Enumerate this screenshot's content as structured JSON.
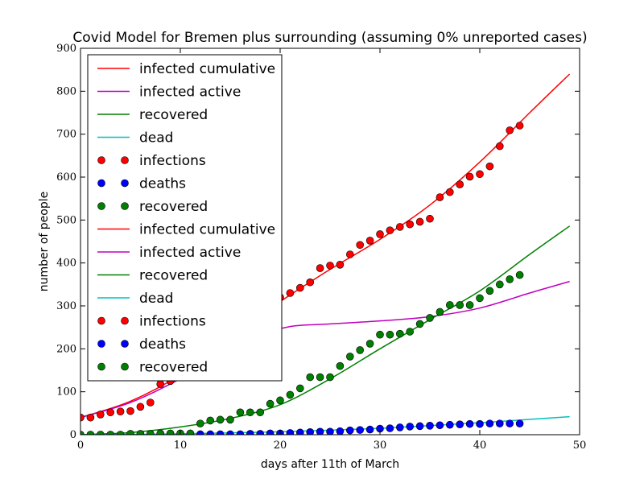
{
  "chart_data": {
    "type": "line",
    "title": "Covid Model for Bremen plus surrounding (assuming 0% unreported cases)",
    "xlabel": "days after 11th of March",
    "ylabel": "number of people",
    "xlim": [
      0,
      50
    ],
    "ylim": [
      0,
      900
    ],
    "xticks": [
      "0",
      "10",
      "20",
      "30",
      "40",
      "50"
    ],
    "yticks": [
      "0",
      "100",
      "200",
      "300",
      "400",
      "500",
      "600",
      "700",
      "800",
      "900"
    ],
    "grid": false,
    "legend_position": "top-left",
    "legend": [
      {
        "label": "infected cumulative",
        "kind": "line",
        "color": "#ff0000"
      },
      {
        "label": "infected active",
        "kind": "line",
        "color": "#bf00bf"
      },
      {
        "label": "recovered",
        "kind": "line",
        "color": "#008000"
      },
      {
        "label": "dead",
        "kind": "line",
        "color": "#00bfbf"
      },
      {
        "label": "infections",
        "kind": "marker",
        "color": "#ff0000"
      },
      {
        "label": "deaths",
        "kind": "marker",
        "color": "#0000ff"
      },
      {
        "label": "recovered",
        "kind": "marker",
        "color": "#008000"
      },
      {
        "label": "infected cumulative",
        "kind": "line",
        "color": "#ff0000"
      },
      {
        "label": "infected active",
        "kind": "line",
        "color": "#bf00bf"
      },
      {
        "label": "recovered",
        "kind": "line",
        "color": "#008000"
      },
      {
        "label": "dead",
        "kind": "line",
        "color": "#00bfbf"
      },
      {
        "label": "infections",
        "kind": "marker",
        "color": "#ff0000"
      },
      {
        "label": "deaths",
        "kind": "marker",
        "color": "#0000ff"
      },
      {
        "label": "recovered",
        "kind": "marker",
        "color": "#008000"
      }
    ],
    "line_series": [
      {
        "name": "infected cumulative",
        "color": "#ff0000",
        "x": [
          0,
          5,
          10,
          15,
          20,
          25,
          30,
          35,
          40,
          45,
          49
        ],
        "y": [
          40,
          78,
          140,
          230,
          310,
          385,
          455,
          535,
          635,
          750,
          840
        ]
      },
      {
        "name": "infected active",
        "color": "#bf00bf",
        "x": [
          0,
          5,
          10,
          15,
          18,
          21,
          25,
          30,
          35,
          40,
          45,
          49
        ],
        "y": [
          40,
          75,
          130,
          195,
          230,
          252,
          258,
          265,
          275,
          295,
          330,
          357
        ]
      },
      {
        "name": "recovered",
        "color": "#008000",
        "x": [
          0,
          5,
          10,
          15,
          20,
          25,
          30,
          35,
          40,
          45,
          49
        ],
        "y": [
          0,
          5,
          18,
          38,
          70,
          130,
          200,
          268,
          335,
          420,
          486
        ]
      },
      {
        "name": "dead",
        "color": "#00bfbf",
        "x": [
          0,
          10,
          20,
          30,
          40,
          49
        ],
        "y": [
          0,
          2,
          7,
          15,
          28,
          42
        ]
      }
    ],
    "scatter_series": [
      {
        "name": "infections",
        "color": "#ff0000",
        "x": [
          0,
          1,
          2,
          3,
          4,
          5,
          6,
          7,
          8,
          9,
          20,
          21,
          22,
          23,
          24,
          25,
          26,
          27,
          28,
          29,
          30,
          31,
          32,
          33,
          34,
          35,
          36,
          37,
          38,
          39,
          40,
          41,
          42,
          43,
          44
        ],
        "y": [
          40,
          40,
          47,
          52,
          54,
          55,
          65,
          75,
          118,
          125,
          320,
          330,
          342,
          355,
          388,
          394,
          396,
          420,
          442,
          452,
          467,
          476,
          484,
          490,
          496,
          503,
          553,
          565,
          583,
          601,
          607,
          625,
          672,
          709,
          720
        ]
      },
      {
        "name": "deaths",
        "color": "#0000ff",
        "x": [
          0,
          1,
          2,
          3,
          4,
          5,
          6,
          7,
          8,
          9,
          10,
          11,
          12,
          13,
          14,
          15,
          16,
          17,
          18,
          19,
          20,
          21,
          22,
          23,
          24,
          25,
          26,
          27,
          28,
          29,
          30,
          31,
          32,
          33,
          34,
          35,
          36,
          37,
          38,
          39,
          40,
          41,
          42,
          43,
          44
        ],
        "y": [
          0,
          0,
          0,
          0,
          0,
          0,
          0,
          0,
          0,
          0,
          0,
          0,
          1,
          1,
          1,
          1,
          1,
          2,
          2,
          3,
          3,
          4,
          5,
          6,
          7,
          7,
          8,
          10,
          11,
          12,
          14,
          15,
          17,
          19,
          20,
          21,
          22,
          23,
          24,
          25,
          25,
          26,
          26,
          26,
          26
        ]
      },
      {
        "name": "recovered",
        "color": "#008000",
        "x": [
          0,
          1,
          2,
          3,
          4,
          5,
          6,
          7,
          8,
          9,
          10,
          11,
          12,
          13,
          14,
          15,
          16,
          17,
          18,
          19,
          20,
          21,
          22,
          23,
          24,
          25,
          26,
          27,
          28,
          29,
          30,
          31,
          32,
          33,
          34,
          35,
          36,
          37,
          38,
          39,
          40,
          41,
          42,
          43,
          44
        ],
        "y": [
          0,
          0,
          0,
          0,
          0,
          2,
          2,
          2,
          3,
          3,
          3,
          3,
          26,
          33,
          35,
          35,
          52,
          52,
          52,
          72,
          80,
          93,
          108,
          134,
          134,
          134,
          160,
          182,
          197,
          212,
          233,
          233,
          235,
          240,
          258,
          272,
          286,
          302,
          302,
          302,
          318,
          335,
          350,
          362,
          372
        ]
      }
    ]
  }
}
